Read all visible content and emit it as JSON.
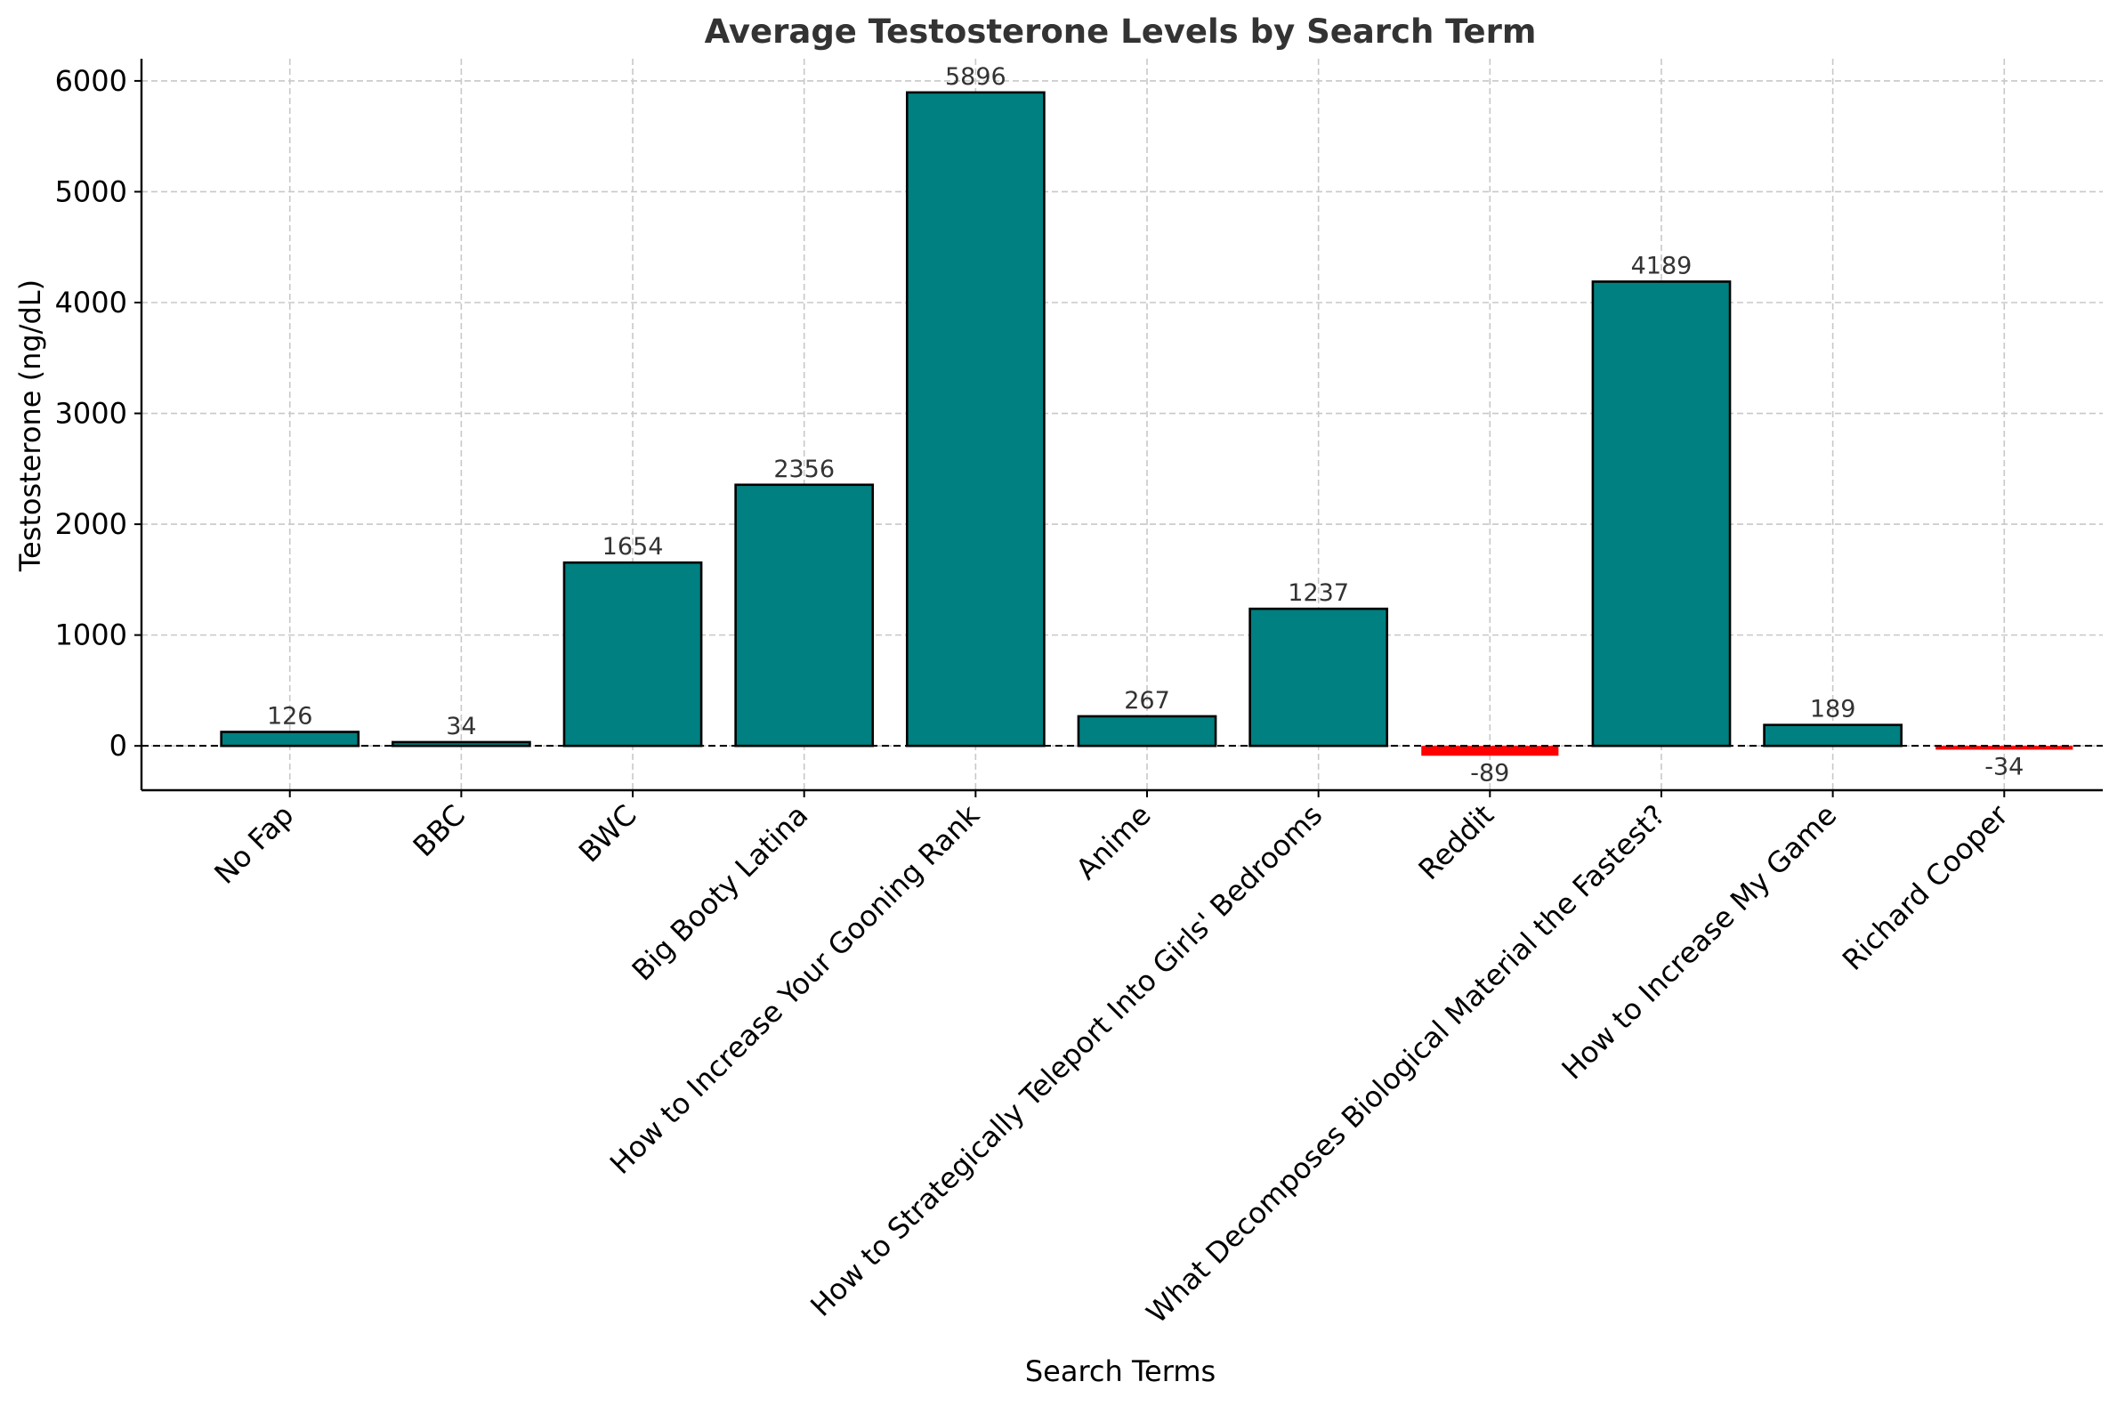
{
  "chart_data": {
    "type": "bar",
    "title": "Average Testosterone Levels by Search Term",
    "xlabel": "Search Terms",
    "ylabel": "Testosterone (ng/dL)",
    "categories": [
      "No Fap",
      "BBC",
      "BWC",
      "Big Booty Latina",
      "How to Increase Your Gooning Rank",
      "Anime",
      "How to Strategically Teleport Into Girls' Bedrooms",
      "Reddit",
      "What Decomposes Biological Material the Fastest?",
      "How to Increase My Game",
      "Richard Cooper"
    ],
    "values": [
      126,
      34,
      1654,
      2356,
      5896,
      267,
      1237,
      -89,
      4189,
      189,
      -34
    ],
    "ylim": [
      -400,
      6200
    ],
    "yticks": [
      0,
      1000,
      2000,
      3000,
      4000,
      5000,
      6000
    ],
    "grid": true,
    "zero_line": true,
    "colors": {
      "positive": "#008080",
      "negative": "#ff0000",
      "edge": "#000000"
    }
  }
}
